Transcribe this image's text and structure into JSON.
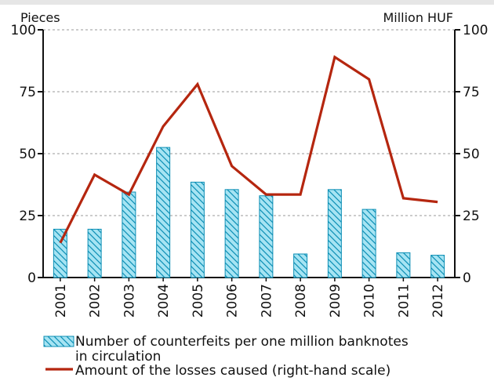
{
  "chart_data": {
    "type": "bar",
    "categories": [
      "2001",
      "2002",
      "2003",
      "2004",
      "2005",
      "2006",
      "2007",
      "2008",
      "2009",
      "2010",
      "2011",
      "2012"
    ],
    "series": [
      {
        "name": "Number of counterfeits per one million banknotes in circulation",
        "kind": "bar",
        "axis": "left",
        "values": [
          19.5,
          19.5,
          34.5,
          52.5,
          38.5,
          35.5,
          33,
          9.5,
          35.5,
          27.5,
          10,
          9
        ]
      },
      {
        "name": "Amount of the losses caused (right-hand scale)",
        "kind": "line",
        "axis": "right",
        "values": [
          14,
          41.5,
          33.5,
          61,
          78,
          45,
          33.5,
          33.5,
          89,
          80,
          32,
          30.5
        ]
      }
    ],
    "left_axis": {
      "unit": "Pieces",
      "ticks": [
        "0",
        "25",
        "50",
        "75",
        "100"
      ],
      "ylim": [
        0,
        100
      ]
    },
    "right_axis": {
      "unit": "Million HUF",
      "ticks": [
        "0",
        "25",
        "50",
        "75",
        "100"
      ],
      "ylim": [
        0,
        100
      ]
    },
    "legend": {
      "bar_label_line1": "Number of counterfeits per one million banknotes",
      "bar_label_line2": "in circulation",
      "line_label": "Amount of the losses caused (right-hand scale)"
    },
    "grid": "horizontal dashed",
    "colors": {
      "bar_fill": "#a6e4f3",
      "bar_hatch": "#0c8fb5",
      "line": "#b5260f",
      "background": "#ffffff"
    }
  }
}
